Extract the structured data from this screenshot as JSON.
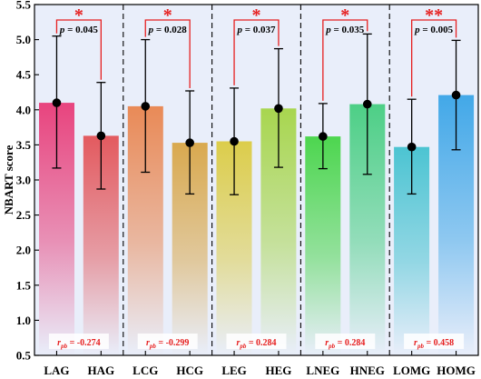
{
  "chart_data": {
    "type": "bar",
    "ylabel": "NBART score",
    "ylim": [
      0.5,
      5.5
    ],
    "yticks": [
      "0.5",
      "1.0",
      "1.5",
      "2.0",
      "2.5",
      "3.0",
      "3.5",
      "4.0",
      "4.5",
      "5.0",
      "5.5"
    ],
    "categories": [
      "LAG",
      "HAG",
      "LCG",
      "HCG",
      "LEG",
      "HEG",
      "LNEG",
      "HNEG",
      "LOMG",
      "HOMG"
    ],
    "values": [
      4.1,
      3.63,
      4.05,
      3.53,
      3.55,
      4.02,
      3.62,
      4.08,
      3.47,
      4.21
    ],
    "error_low": [
      3.17,
      2.87,
      3.11,
      2.8,
      2.79,
      3.18,
      3.16,
      3.08,
      2.8,
      3.43
    ],
    "error_high": [
      5.05,
      4.39,
      5.0,
      4.27,
      4.31,
      4.87,
      4.09,
      5.08,
      4.15,
      4.99
    ],
    "bar_colors": [
      "#e8447e",
      "#e35a5f",
      "#e98a57",
      "#d9a94f",
      "#dccd4b",
      "#a8d64f",
      "#4dd64f",
      "#4dcf86",
      "#4cc4d2",
      "#42a8e8"
    ],
    "groups": [
      {
        "p_label": "p = 0.045",
        "stars": "*",
        "rpb": "r",
        "rpb_sub": "pb",
        "rpb_value": " = -0.274"
      },
      {
        "p_label": "p = 0.028",
        "stars": "*",
        "rpb": "r",
        "rpb_sub": "pb",
        "rpb_value": " = -0.299"
      },
      {
        "p_label": "p = 0.037",
        "stars": "*",
        "rpb": "r",
        "rpb_sub": "pb",
        "rpb_value": " = 0.284"
      },
      {
        "p_label": "p = 0.035",
        "stars": "*",
        "rpb": "r",
        "rpb_sub": "pb",
        "rpb_value": " = 0.284"
      },
      {
        "p_label": "p = 0.005",
        "stars": "**",
        "rpb": "r",
        "rpb_sub": "pb",
        "rpb_value": " = 0.458"
      }
    ],
    "grid": false,
    "background": "#e9eefa",
    "bracket_color": "#e62020"
  }
}
